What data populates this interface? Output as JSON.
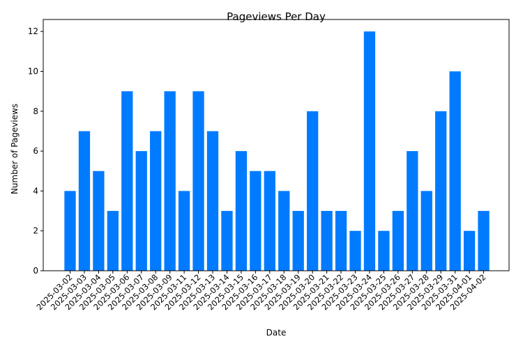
{
  "chart_data": {
    "type": "bar",
    "title": "Pageviews Per Day",
    "xlabel": "Date",
    "ylabel": "Number of Pageviews",
    "ylim": [
      0,
      12.6
    ],
    "yticks": [
      0,
      2,
      4,
      6,
      8,
      10,
      12
    ],
    "grid": false,
    "bar_color": "#007bff",
    "categories": [
      "2025-03-02",
      "2025-03-03",
      "2025-03-04",
      "2025-03-05",
      "2025-03-06",
      "2025-03-07",
      "2025-03-08",
      "2025-03-09",
      "2025-03-11",
      "2025-03-12",
      "2025-03-13",
      "2025-03-14",
      "2025-03-15",
      "2025-03-16",
      "2025-03-17",
      "2025-03-18",
      "2025-03-19",
      "2025-03-20",
      "2025-03-21",
      "2025-03-22",
      "2025-03-23",
      "2025-03-24",
      "2025-03-25",
      "2025-03-26",
      "2025-03-27",
      "2025-03-28",
      "2025-03-29",
      "2025-03-31",
      "2025-04-01",
      "2025-04-02"
    ],
    "values": [
      4,
      7,
      5,
      3,
      9,
      6,
      7,
      9,
      4,
      9,
      7,
      3,
      6,
      5,
      5,
      4,
      3,
      8,
      3,
      3,
      2,
      12,
      2,
      3,
      6,
      4,
      8,
      10,
      2,
      3
    ]
  }
}
